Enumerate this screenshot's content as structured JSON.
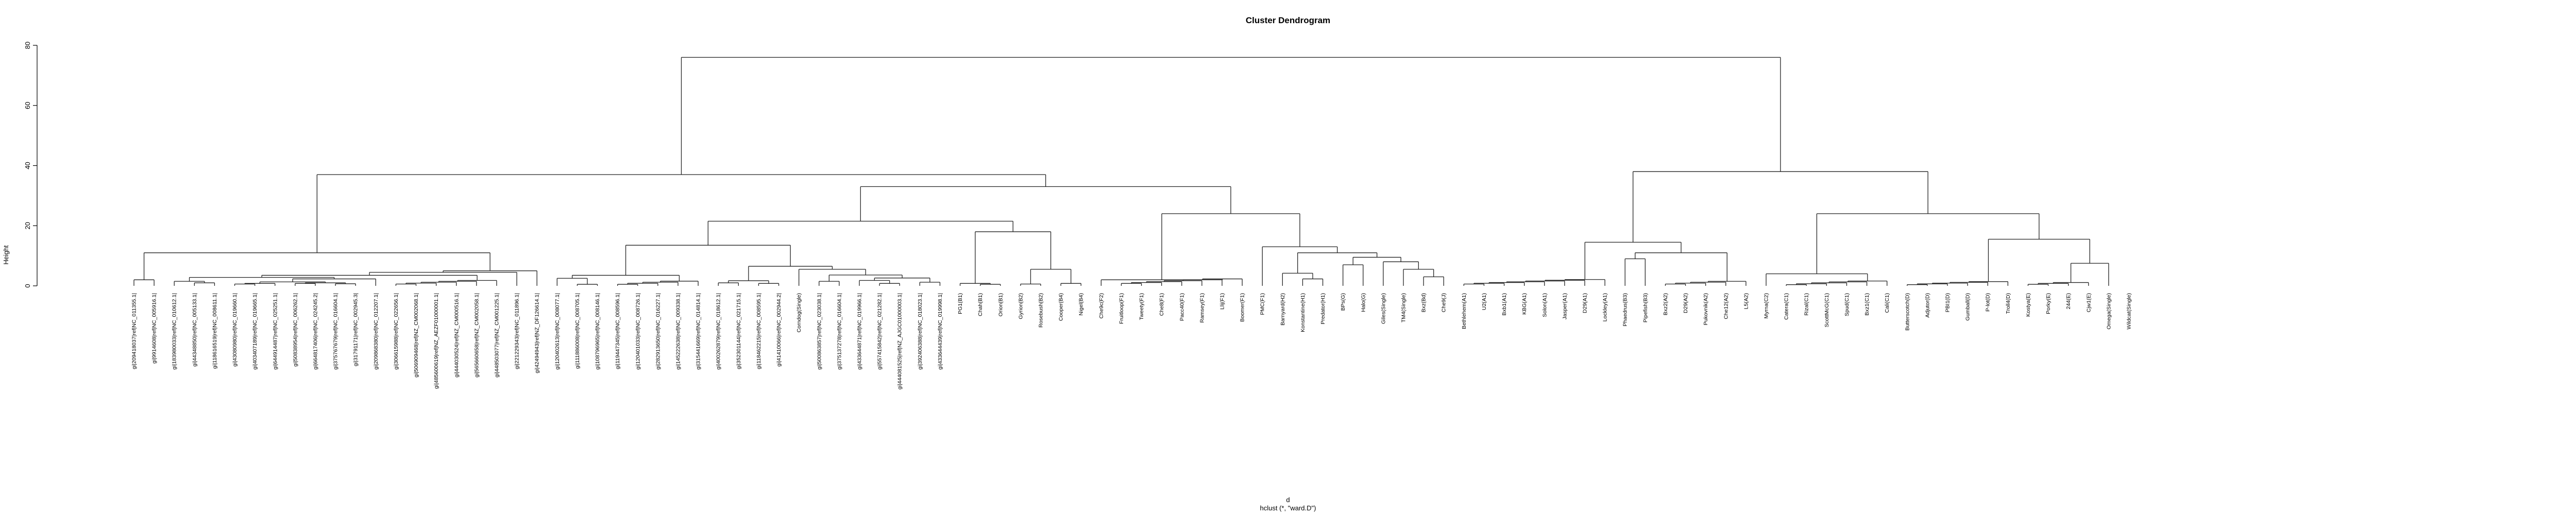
{
  "chart_data": {
    "type": "dendrogram",
    "title": "Cluster Dendrogram",
    "xlabel": "d",
    "xlabel2": "hclust (*, \"ward.D\")",
    "ylabel": "Height",
    "ylim": [
      0,
      80
    ],
    "yticks": [
      0,
      20,
      40,
      60,
      80
    ],
    "grid": false,
    "leaves": [
      "gi|209418037|ref|NC_011355.1|",
      "gi|9914608|ref|NC_005916.1|",
      "gi|183980033|ref|NC_010612.1|",
      "gi|44348850|ref|NC_005133.1|",
      "gi|118616519|ref|NC_008611.1|",
      "gi|43080980|ref|NC_019660.1|",
      "gi|403407189|ref|NC_019665.1|",
      "gi|644914487|ref|NC_025251.1|",
      "gi|50838954|ref|NC_006262.1|",
      "gi|664817406|ref|NC_024245.2|",
      "gi|375767679|ref|NC_016604.1|",
      "gi|31791171|ref|NC_002945.3|",
      "gi|209868380|ref|NC_012207.1|",
      "gi|306615988|ref|NC_022656.1|",
      "gi|506909468|ref|NZ_CM002068.1|",
      "gi|485600619|ref|NZ_AEZF01000001.1|",
      "gi|444030524|ref|NZ_CM000516.1|",
      "gi|565660658|ref|NZ_CM002058.1|",
      "gi|448503077|ref|NZ_CM001225.1|",
      "gi|221229343|ref|NC_011896.1|",
      "gi|42494943|ref|NZ_DF126614.1|",
      "gi|120402613|ref|NC_008077.1|",
      "gi|111886008|ref|NC_008705.1|",
      "gi|108796965|ref|NC_008146.1|",
      "gi|119447345|ref|NC_008596.1|",
      "gi|120401033|ref|NC_008726.1|",
      "gi|282913650|ref|NC_016227.1|",
      "gi|145222638|ref|NC_009338.1|",
      "gi|315441669|ref|NC_014814.1|",
      "gi|400262879|ref|NC_018612.1|",
      "gi|352301144|ref|NC_021715.1|",
      "gi|118462215|ref|NC_008595.1|",
      "gi|41410066|ref|NC_002944.2|",
      "Corndog(Single)",
      "gi|500863857|ref|NC_023038.1|",
      "gi|375137278|ref|NC_016604.1|",
      "gi|433644871|ref|NC_019966.1|",
      "gi|557415842|ref|NC_021282.1|",
      "gi|444081525|ref|NZ_AJGC01000003.1|",
      "gi|392406388|ref|NC_018023.1|",
      "gi|433644439|ref|NC_019998.1|",
      "PG1(B1)",
      "Chah(B1)",
      "Orion(B1)",
      "Gyrion(B2)",
      "Rosebush(B2)",
      "Cooper(B4)",
      "Nigel(B4)",
      "Che9c(F2)",
      "Fruitloop(F1)",
      "Tweety(F1)",
      "Che8(F1)",
      "Pacc40(F1)",
      "Ramsey(F1)",
      "Llij(F1)",
      "Boomer(F1)",
      "PMC(F1)",
      "Barnyard(H2)",
      "Konstantine(H1)",
      "Predator(H1)",
      "BPs(G)",
      "Halo(G)",
      "Giles(Single)",
      "TM4(Single)",
      "Bxz(Bd)",
      "Che9(J)",
      "Bethlehem(A1)",
      "U2(A1)",
      "Bxb1(A1)",
      "KBG(A1)",
      "Solon(A1)",
      "Jasper(A1)",
      "D29(A1)",
      "Lockley(A1)",
      "Phaedrus(B3)",
      "Pipefish(B3)",
      "Bxz2(A2)",
      "D29(A2)",
      "Pukovnik(A2)",
      "Che12(A2)",
      "L5(A2)",
      "Myrna(C2)",
      "Catera(C1)",
      "Rizal(C1)",
      "ScottMcG(C1)",
      "Spud(C1)",
      "Bxz1(C1)",
      "Cali(C1)",
      "Butterscotch(D)",
      "Adjutor(D)",
      "PBI1(D)",
      "Gumball(D)",
      "P-lot(D)",
      "Troll4(D)",
      "Kostya(E)",
      "Porky(E)",
      "244(E)",
      "Cjw1(E)",
      "Omega(Single)",
      "Wildcat(Single)"
    ]
  }
}
